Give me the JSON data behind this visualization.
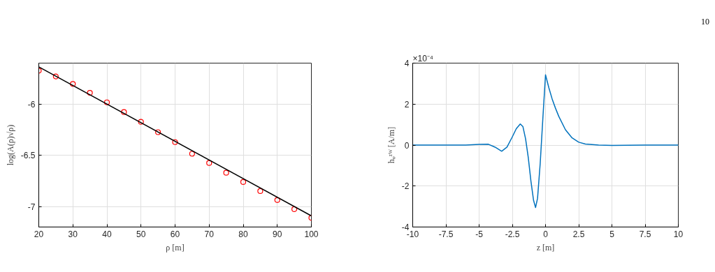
{
  "chart_data": [
    {
      "type": "scatter",
      "xlabel": "ρ [m]",
      "ylabel": "log(A(ρ)√ρ)",
      "xlim": [
        20,
        100
      ],
      "ylim": [
        -7.2,
        -5.6
      ],
      "xticks": [
        20,
        30,
        40,
        50,
        60,
        70,
        80,
        90,
        100
      ],
      "yticks": [
        {
          "value": -7,
          "label": "-7"
        },
        {
          "value": -6.5,
          "label": "-6.5"
        },
        {
          "value": -6,
          "label": "-6"
        }
      ],
      "grid": true,
      "series": [
        {
          "marker": "circle",
          "color": "#ff0000",
          "x": [
            20,
            25,
            30,
            35,
            40,
            45,
            50,
            55,
            60,
            65,
            70,
            75,
            80,
            85,
            90,
            95,
            100
          ],
          "values": [
            -5.674,
            -5.73,
            -5.803,
            -5.89,
            -5.983,
            -6.078,
            -6.173,
            -6.274,
            -6.371,
            -6.485,
            -6.575,
            -6.67,
            -6.76,
            -6.849,
            -6.937,
            -7.026,
            -7.11
          ]
        },
        {
          "type": "line",
          "color": "#000000",
          "x": [
            20,
            100
          ],
          "values": [
            -5.637,
            -7.091
          ]
        }
      ]
    },
    {
      "type": "line",
      "xlabel": "z [m]",
      "ylabel": "hᵩᶻᵂ [A/m]",
      "xlim": [
        -10,
        10
      ],
      "ylim": [
        -4,
        4
      ],
      "xticks": [
        {
          "value": -10,
          "label": "-10"
        },
        {
          "value": -7.5,
          "label": "-7.5"
        },
        {
          "value": -5,
          "label": "-5"
        },
        {
          "value": -2.5,
          "label": "-2.5"
        },
        0,
        2.5,
        5,
        7.5,
        10
      ],
      "yticks": [
        {
          "value": -4,
          "label": "-4"
        },
        {
          "value": -2,
          "label": "-2"
        },
        0,
        2,
        4
      ],
      "grid": true,
      "annotations": [
        "×10⁻⁴",
        "10"
      ],
      "series": [
        {
          "color": "#0072bd",
          "x": [
            -10,
            -8,
            -6,
            -5,
            -4.3,
            -3.8,
            -3.3,
            -2.9,
            -2.5,
            -2.2,
            -1.9,
            -1.7,
            -1.5,
            -1.3,
            -1.1,
            -0.9,
            -0.75,
            -0.6,
            -0.4,
            -0.2,
            0,
            0.25,
            0.5,
            0.75,
            1,
            1.5,
            2,
            2.5,
            3,
            4,
            5,
            7.5,
            10
          ],
          "values": [
            0,
            0,
            0,
            0.03,
            0.04,
            -0.1,
            -0.3,
            -0.1,
            0.4,
            0.8,
            1.03,
            0.9,
            0.3,
            -0.6,
            -1.75,
            -2.7,
            -3.05,
            -2.6,
            -0.9,
            1.3,
            3.43,
            2.8,
            2.25,
            1.8,
            1.4,
            0.75,
            0.35,
            0.14,
            0.05,
            0,
            -0.02,
            0,
            0
          ]
        }
      ]
    }
  ]
}
